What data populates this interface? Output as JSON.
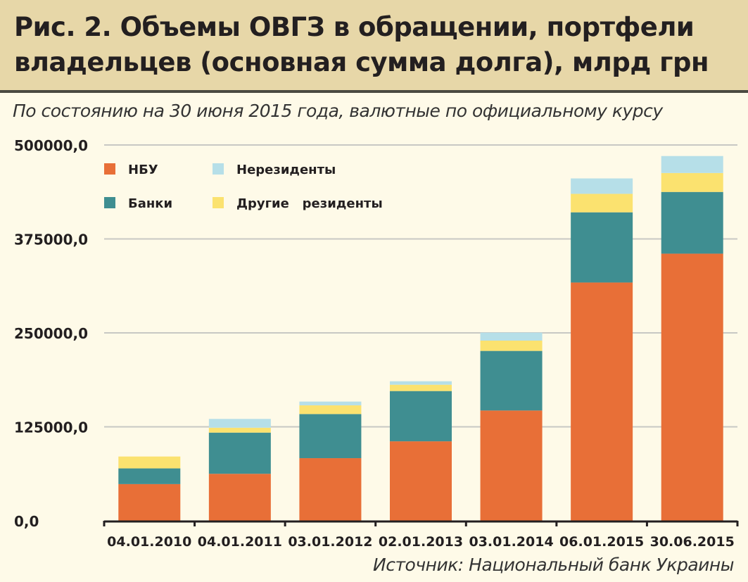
{
  "title_line1": "Рис. 2. Объемы ОВГЗ в обращении, портфели",
  "title_line2": "владельцев (основная сумма долга), млрд грн",
  "subtitle": "По состоянию на 30 июня 2015 года, валютные по официальному курсу",
  "source": "Источник: Национальный банк Украины",
  "chart_data": {
    "type": "bar",
    "stacked": true,
    "title": "Рис. 2. Объемы ОВГЗ в обращении, портфели владельцев (основная сумма долга), млрд грн",
    "categories": [
      "04.01.2010",
      "04.01.2011",
      "03.01.2012",
      "02.01.2013",
      "03.01.2014",
      "06.01.2015",
      "30.06.2015"
    ],
    "series": [
      {
        "name": "НБУ",
        "color": "#e86f37",
        "values": [
          48800,
          62500,
          83300,
          105700,
          146700,
          317000,
          355400
        ]
      },
      {
        "name": "Банки",
        "color": "#3f8e91",
        "values": [
          20900,
          54800,
          58700,
          66900,
          79300,
          93400,
          82100
        ]
      },
      {
        "name": "Другие   резиденты",
        "color": "#fbe26f",
        "values": [
          15800,
          6500,
          11600,
          8400,
          13700,
          24600,
          25200
        ]
      },
      {
        "name": "Нерезиденты",
        "color": "#b6dfe8",
        "values": [
          0,
          11700,
          5000,
          4600,
          10600,
          20500,
          22600
        ]
      }
    ],
    "yticks": [
      "0,0",
      "125000,0",
      "250000,0",
      "375000,0",
      "500000,0"
    ],
    "ytick_values": [
      0,
      125000,
      250000,
      375000,
      500000
    ],
    "ylim": [
      0,
      500000
    ],
    "grid": true,
    "legend": "top-left",
    "xlabel": "",
    "ylabel": ""
  }
}
